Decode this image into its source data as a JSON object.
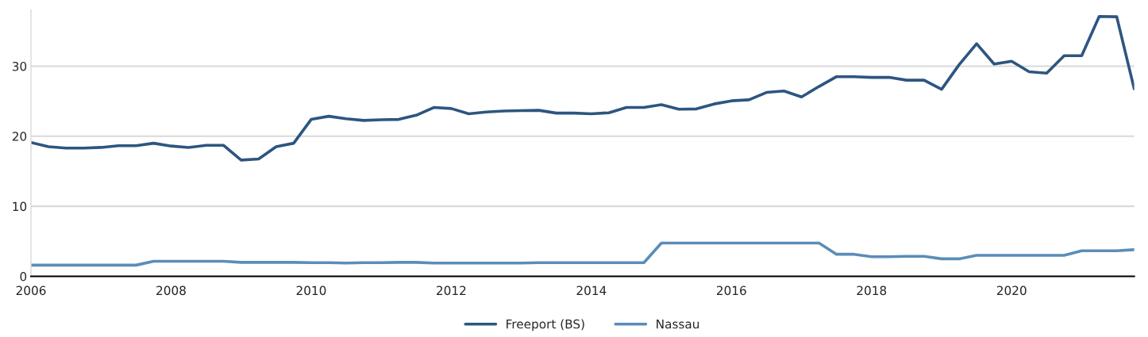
{
  "chart_data": {
    "type": "line",
    "x": [
      2006,
      2006.25,
      2006.5,
      2006.75,
      2007,
      2007.25,
      2007.5,
      2007.75,
      2008,
      2008.25,
      2008.5,
      2008.75,
      2009,
      2009.25,
      2009.5,
      2009.75,
      2010,
      2010.25,
      2010.5,
      2010.75,
      2011,
      2011.25,
      2011.5,
      2011.75,
      2012,
      2012.25,
      2012.5,
      2012.75,
      2013,
      2013.25,
      2013.5,
      2013.75,
      2014,
      2014.25,
      2014.5,
      2014.75,
      2015,
      2015.25,
      2015.5,
      2015.75,
      2016,
      2016.25,
      2016.5,
      2016.75,
      2017,
      2017.25,
      2017.5,
      2017.75,
      2018,
      2018.25,
      2018.5,
      2018.75,
      2019,
      2019.25,
      2019.5,
      2019.75,
      2020,
      2020.25,
      2020.5,
      2020.75,
      2021,
      2021.25,
      2021.5,
      2021.75
    ],
    "series": [
      {
        "name": "Freeport (BS)",
        "color": "#2d5580",
        "values": [
          19.1,
          18.5,
          18.3,
          18.3,
          18.4,
          18.65,
          18.65,
          19.0,
          18.6,
          18.4,
          18.7,
          18.7,
          16.6,
          16.75,
          18.5,
          19.0,
          22.4,
          22.85,
          22.5,
          22.25,
          22.35,
          22.4,
          23.0,
          24.1,
          23.95,
          23.2,
          23.45,
          23.6,
          23.65,
          23.7,
          23.3,
          23.3,
          23.2,
          23.35,
          24.1,
          24.1,
          24.5,
          23.85,
          23.9,
          24.6,
          25.05,
          25.2,
          26.25,
          26.45,
          25.6,
          27.1,
          28.5,
          28.5,
          28.4,
          28.4,
          28.0,
          28.0,
          26.7,
          30.2,
          33.2,
          30.3,
          30.7,
          29.2,
          29.0,
          31.5,
          31.5,
          37.1,
          37.05,
          26.75
        ]
      },
      {
        "name": "Nassau",
        "color": "#5b8db8",
        "values": [
          1.6,
          1.6,
          1.6,
          1.6,
          1.6,
          1.6,
          1.6,
          2.15,
          2.15,
          2.15,
          2.15,
          2.15,
          2.0,
          2.0,
          2.0,
          2.0,
          1.95,
          1.95,
          1.9,
          1.95,
          1.95,
          2.0,
          2.0,
          1.9,
          1.9,
          1.9,
          1.9,
          1.9,
          1.9,
          1.95,
          1.95,
          1.95,
          1.95,
          1.95,
          1.95,
          1.95,
          4.75,
          4.75,
          4.75,
          4.75,
          4.75,
          4.75,
          4.75,
          4.75,
          4.75,
          4.75,
          3.15,
          3.15,
          2.8,
          2.8,
          2.85,
          2.85,
          2.5,
          2.5,
          3.0,
          3.0,
          3.0,
          3.0,
          3.0,
          3.0,
          3.65,
          3.65,
          3.65,
          3.8
        ]
      }
    ],
    "xlim": [
      2006,
      2021.75
    ],
    "xticks": [
      2006,
      2008,
      2010,
      2012,
      2014,
      2016,
      2018,
      2020
    ],
    "ylim": [
      0,
      38
    ],
    "yticks": [
      0,
      10,
      20,
      30
    ],
    "grid": "y",
    "legend": "bottom",
    "marker": "none",
    "line_style": "solid"
  }
}
